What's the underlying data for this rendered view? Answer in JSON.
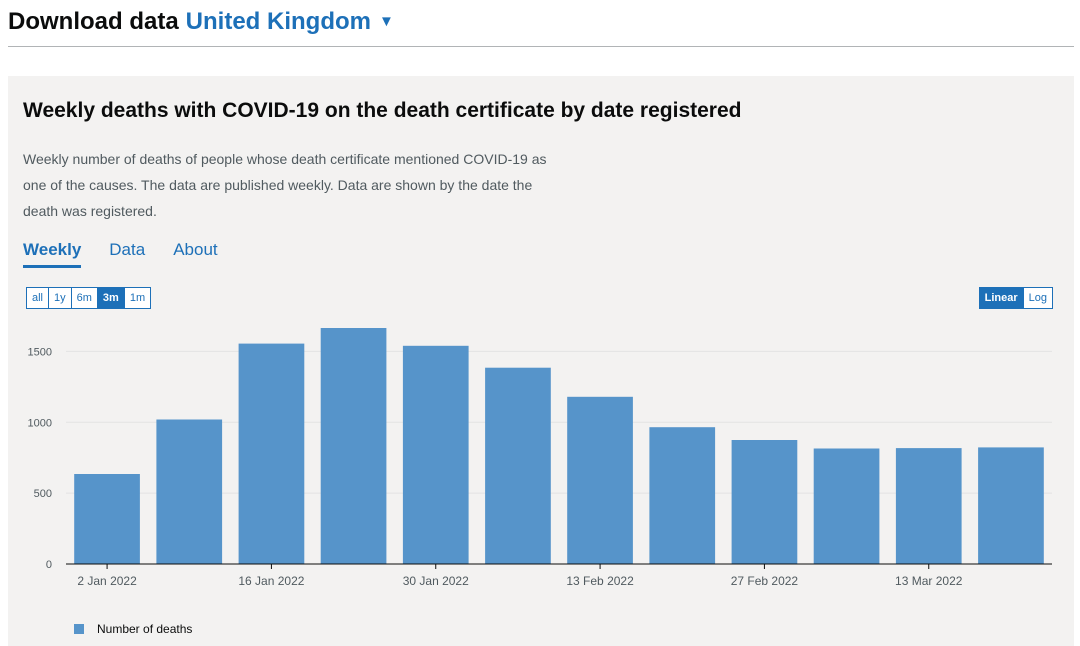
{
  "header": {
    "title": "Download data",
    "region": "United Kingdom",
    "caret": "▼"
  },
  "card": {
    "title": "Weekly deaths with COVID-19 on the death certificate by date registered",
    "description": "Weekly number of deaths of people whose death certificate mentioned COVID-19 as one of the causes. The data are published weekly. Data are shown by the date the death was registered.",
    "tabs": [
      {
        "label": "Weekly",
        "active": true
      },
      {
        "label": "Data",
        "active": false
      },
      {
        "label": "About",
        "active": false
      }
    ],
    "range_buttons": [
      {
        "label": "all",
        "active": false
      },
      {
        "label": "1y",
        "active": false
      },
      {
        "label": "6m",
        "active": false
      },
      {
        "label": "3m",
        "active": true
      },
      {
        "label": "1m",
        "active": false
      }
    ],
    "scale_buttons": [
      {
        "label": "Linear",
        "active": true
      },
      {
        "label": "Log",
        "active": false
      }
    ]
  },
  "colors": {
    "bar": "#5694ca",
    "accent": "#1d70b8",
    "panel": "#f3f2f1"
  },
  "chart_data": {
    "type": "bar",
    "series": [
      {
        "name": "Number of deaths",
        "x": [
          "2022-01-02",
          "2022-01-09",
          "2022-01-16",
          "2022-01-23",
          "2022-01-30",
          "2022-02-06",
          "2022-02-13",
          "2022-02-20",
          "2022-02-27",
          "2022-03-06",
          "2022-03-13",
          "2022-03-20"
        ],
        "values": [
          635,
          1020,
          1555,
          1665,
          1540,
          1385,
          1180,
          965,
          875,
          815,
          818,
          823
        ]
      }
    ],
    "x_tick_labels": [
      "2 Jan 2022",
      "16 Jan 2022",
      "30 Jan 2022",
      "13 Feb 2022",
      "27 Feb 2022",
      "13 Mar 2022"
    ],
    "y_ticks": [
      0,
      500,
      1000,
      1500
    ],
    "ylim": [
      0,
      1750
    ],
    "grid": true,
    "legend": "bottom-left",
    "title": "",
    "xlabel": "",
    "ylabel": ""
  }
}
